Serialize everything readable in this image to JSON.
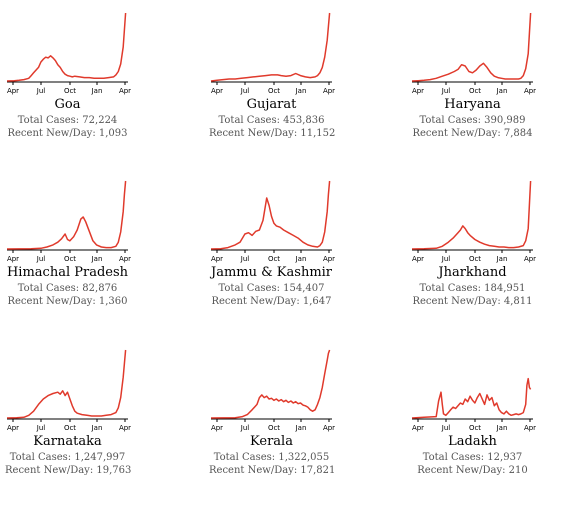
{
  "total_prefix": "Total Cases: ",
  "recent_prefix": "Recent New/Day: ",
  "chart_data": [
    {
      "type": "line",
      "title": "Goa",
      "total_cases": "72,224",
      "recent_new_per_day": "1,093",
      "x_ticks": [
        "Apr",
        "Jul",
        "Oct",
        "Jan",
        "Apr"
      ],
      "x": [
        0,
        6,
        10,
        14,
        18,
        20,
        22,
        24,
        26,
        28,
        30,
        32,
        34,
        36,
        38,
        40,
        42,
        44,
        46,
        48,
        50,
        52,
        54,
        56,
        60,
        64,
        68,
        72,
        76,
        80,
        84,
        88,
        90,
        92,
        94,
        96,
        97,
        98
      ],
      "values": [
        0,
        0.3,
        1,
        2,
        4,
        8,
        12,
        16,
        20,
        28,
        32,
        35,
        34,
        37,
        34,
        30,
        24,
        20,
        14,
        10,
        8,
        7,
        6,
        7,
        6,
        5,
        5,
        4,
        4,
        4,
        5,
        6,
        9,
        14,
        25,
        50,
        75,
        100
      ]
    },
    {
      "type": "line",
      "title": "Gujarat",
      "total_cases": "453,836",
      "recent_new_per_day": "11,152",
      "x_ticks": [
        "Apr",
        "Jul",
        "Oct",
        "Jan",
        "Apr"
      ],
      "x": [
        0,
        5,
        10,
        15,
        20,
        25,
        30,
        35,
        40,
        45,
        50,
        55,
        58,
        62,
        66,
        70,
        74,
        78,
        82,
        86,
        88,
        90,
        92,
        94,
        96,
        97,
        98
      ],
      "values": [
        0,
        1,
        2,
        3,
        3,
        4,
        5,
        6,
        7,
        8,
        9,
        9,
        8,
        7,
        8,
        11,
        8,
        6,
        5,
        6,
        8,
        12,
        20,
        35,
        60,
        80,
        100
      ]
    },
    {
      "type": "line",
      "title": "Haryana",
      "total_cases": "390,989",
      "recent_new_per_day": "7,884",
      "x_ticks": [
        "Apr",
        "Jul",
        "Oct",
        "Jan",
        "Apr"
      ],
      "x": [
        0,
        5,
        10,
        15,
        20,
        25,
        30,
        35,
        38,
        41,
        44,
        47,
        50,
        53,
        56,
        59,
        62,
        65,
        68,
        71,
        74,
        77,
        80,
        84,
        88,
        90,
        92,
        94,
        96,
        97,
        98
      ],
      "values": [
        0,
        0.5,
        1,
        2,
        4,
        7,
        10,
        14,
        17,
        24,
        22,
        14,
        12,
        16,
        22,
        26,
        20,
        12,
        7,
        5,
        4,
        3,
        3,
        3,
        3,
        4,
        8,
        18,
        40,
        70,
        100
      ]
    },
    {
      "type": "line",
      "title": "Himachal Pradesh",
      "total_cases": "82,876",
      "recent_new_per_day": "1,360",
      "x_ticks": [
        "Apr",
        "Jul",
        "Oct",
        "Jan",
        "Apr"
      ],
      "x": [
        0,
        10,
        20,
        28,
        33,
        38,
        42,
        45,
        48,
        50,
        52,
        55,
        58,
        61,
        63,
        65,
        68,
        71,
        74,
        78,
        82,
        86,
        90,
        92,
        94,
        96,
        97,
        98
      ],
      "values": [
        0,
        0.2,
        0.5,
        1,
        3,
        6,
        10,
        15,
        22,
        14,
        12,
        18,
        28,
        44,
        47,
        40,
        26,
        12,
        6,
        3,
        2,
        2,
        4,
        10,
        25,
        55,
        80,
        100
      ]
    },
    {
      "type": "line",
      "title": "Jammu & Kashmir",
      "total_cases": "154,407",
      "recent_new_per_day": "1,647",
      "x_ticks": [
        "Apr",
        "Jul",
        "Oct",
        "Jan",
        "Apr"
      ],
      "x": [
        0,
        8,
        14,
        20,
        24,
        28,
        31,
        34,
        37,
        40,
        43,
        46,
        48,
        50,
        52,
        54,
        57,
        60,
        64,
        68,
        72,
        76,
        80,
        84,
        88,
        90,
        92,
        94,
        96,
        97,
        98
      ],
      "values": [
        0,
        0.5,
        2,
        6,
        10,
        22,
        24,
        20,
        26,
        28,
        42,
        75,
        64,
        48,
        38,
        34,
        32,
        28,
        24,
        20,
        16,
        10,
        6,
        4,
        3,
        5,
        10,
        25,
        55,
        80,
        100
      ]
    },
    {
      "type": "line",
      "title": "Jharkhand",
      "total_cases": "184,951",
      "recent_new_per_day": "4,811",
      "x_ticks": [
        "Apr",
        "Jul",
        "Oct",
        "Jan",
        "Apr"
      ],
      "x": [
        0,
        10,
        20,
        25,
        30,
        34,
        38,
        40,
        42,
        44,
        46,
        48,
        52,
        56,
        60,
        64,
        68,
        72,
        76,
        80,
        84,
        88,
        92,
        94,
        96,
        97,
        98
      ],
      "values": [
        0,
        0.3,
        1,
        4,
        10,
        16,
        24,
        28,
        34,
        30,
        24,
        20,
        14,
        10,
        7,
        5,
        4,
        3,
        3,
        2,
        2,
        3,
        5,
        12,
        30,
        65,
        100
      ]
    },
    {
      "type": "line",
      "title": "Karnataka",
      "total_cases": "1,247,997",
      "recent_new_per_day": "19,763",
      "x_ticks": [
        "Apr",
        "Jul",
        "Oct",
        "Jan",
        "Apr"
      ],
      "x": [
        0,
        8,
        14,
        18,
        22,
        26,
        30,
        34,
        38,
        42,
        44,
        46,
        48,
        50,
        52,
        54,
        56,
        58,
        62,
        66,
        70,
        74,
        78,
        82,
        86,
        90,
        92,
        94,
        96,
        97,
        98
      ],
      "values": [
        0,
        0.3,
        1,
        4,
        10,
        20,
        28,
        33,
        36,
        38,
        35,
        40,
        33,
        38,
        28,
        18,
        10,
        7,
        5,
        4,
        3,
        3,
        3,
        4,
        5,
        8,
        15,
        30,
        60,
        80,
        100
      ]
    },
    {
      "type": "line",
      "title": "Kerala",
      "total_cases": "1,322,055",
      "recent_new_per_day": "17,821",
      "x_ticks": [
        "Apr",
        "Jul",
        "Oct",
        "Jan",
        "Apr"
      ],
      "x": [
        0,
        10,
        20,
        26,
        30,
        34,
        38,
        40,
        42,
        44,
        46,
        48,
        50,
        52,
        54,
        56,
        58,
        60,
        62,
        64,
        66,
        68,
        70,
        72,
        74,
        76,
        78,
        80,
        82,
        84,
        86,
        88,
        90,
        92,
        94,
        96,
        97,
        98
      ],
      "values": [
        0,
        0.2,
        0.5,
        2,
        5,
        12,
        20,
        30,
        34,
        30,
        32,
        28,
        29,
        26,
        28,
        25,
        27,
        24,
        26,
        23,
        25,
        22,
        24,
        21,
        22,
        19,
        18,
        16,
        12,
        10,
        12,
        20,
        30,
        45,
        65,
        85,
        95,
        100
      ]
    },
    {
      "type": "line",
      "title": "Ladakh",
      "total_cases": "12,937",
      "recent_new_per_day": "210",
      "x_ticks": [
        "Apr",
        "Jul",
        "Oct",
        "Jan",
        "Apr"
      ],
      "x": [
        0,
        10,
        20,
        22,
        24,
        25,
        26,
        28,
        30,
        32,
        34,
        36,
        38,
        40,
        42,
        44,
        46,
        48,
        50,
        52,
        54,
        56,
        58,
        60,
        62,
        64,
        66,
        68,
        70,
        72,
        74,
        76,
        78,
        80,
        82,
        84,
        86,
        88,
        90,
        92,
        94,
        95,
        96,
        97,
        98
      ],
      "values": [
        0,
        1,
        2,
        25,
        38,
        20,
        6,
        4,
        8,
        12,
        16,
        14,
        18,
        22,
        20,
        28,
        24,
        32,
        26,
        22,
        30,
        36,
        28,
        20,
        34,
        26,
        30,
        18,
        22,
        12,
        8,
        6,
        10,
        6,
        4,
        5,
        6,
        5,
        6,
        8,
        20,
        48,
        58,
        45,
        42
      ]
    }
  ]
}
